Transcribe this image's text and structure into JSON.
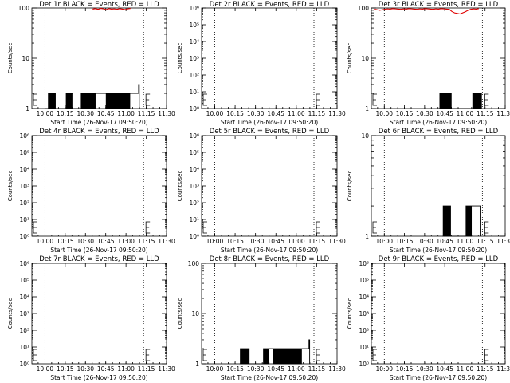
{
  "chart_data": [
    {
      "type": "line",
      "title": "Det 1r BLACK = Events, RED = LLD",
      "xlabel": "Start Time (26-Nov-17 09:50:20)",
      "ylabel": "Counts/sec",
      "yscale": "log",
      "ylim": [
        1,
        100
      ],
      "yticks": [
        1,
        10,
        100
      ],
      "ytick_labels": [
        "1",
        "10",
        "100"
      ],
      "xlim": [
        "09:50:20",
        "11:30:00"
      ],
      "xticks": [
        "10:00",
        "10:15",
        "10:30",
        "10:45",
        "11:00",
        "11:15",
        "11:30"
      ],
      "vlines": [
        "10:00",
        "11:13"
      ],
      "series": [
        {
          "color": "#000000",
          "x_minutes": [
            10,
            12,
            12.2,
            12.6,
            13,
            13.4,
            13.8,
            14.2,
            14.6,
            15,
            15.4,
            15.8,
            16.2,
            16.6,
            17,
            17.4,
            25,
            25.4,
            25.8,
            26.2,
            26.6,
            27,
            27.4,
            27.8,
            28.2,
            28.6,
            29,
            29.4,
            30,
            36,
            36.1,
            36.5,
            36.9,
            37.3,
            37.7,
            38.1,
            38.5,
            38.9,
            39.3,
            39.7,
            40.1,
            40.5,
            40.9,
            41.3,
            41.7,
            42.1,
            42.5,
            42.9,
            43.3,
            43.7,
            44.1,
            44.5,
            44.9,
            45.3,
            45.7,
            46.1,
            46.5,
            46.9,
            50,
            50.5,
            51,
            51.5,
            52,
            52.5,
            53,
            53.5,
            54,
            54.5,
            55,
            55.5,
            56,
            56.5,
            57,
            57.5,
            58,
            58.5,
            59,
            59.5,
            60,
            60.5,
            61,
            61.5,
            62,
            62.5,
            63,
            63.5,
            64,
            64.5,
            65,
            65.5,
            66,
            66.5,
            67,
            67.5,
            68,
            68.5,
            69,
            69.5,
            70,
            70.5,
            71,
            71.5,
            72,
            72.5,
            73,
            73.5,
            74,
            74.5,
            75,
            79,
            79.5,
            80
          ],
          "y": [
            1,
            1,
            2,
            1,
            2,
            1,
            2,
            1,
            2,
            1,
            2,
            1,
            2,
            1,
            2,
            1,
            1,
            2,
            1,
            2,
            1,
            2,
            1,
            2,
            1,
            2,
            1,
            2,
            1,
            1,
            1,
            2,
            1,
            2,
            1,
            2,
            1,
            2,
            1,
            2,
            1,
            2,
            1,
            2,
            1,
            2,
            1,
            2,
            1,
            2,
            1,
            2,
            1,
            2,
            1,
            2,
            1,
            2,
            2,
            2,
            2,
            2,
            2,
            2,
            2,
            2,
            2,
            2,
            1,
            2,
            1,
            2,
            1,
            2,
            1,
            2,
            1,
            2,
            1,
            2,
            1,
            2,
            1,
            2,
            1,
            2,
            1,
            2,
            1,
            2,
            1,
            2,
            1,
            2,
            1,
            2,
            1,
            2,
            1,
            2,
            1,
            2,
            1,
            2,
            2,
            2,
            2,
            2,
            2,
            3,
            1,
            1
          ]
        },
        {
          "color": "#e00000",
          "x_minutes": [
            45,
            47,
            49,
            51,
            53,
            55,
            57,
            59,
            61,
            63,
            65,
            67,
            69,
            71,
            73
          ],
          "y": [
            95,
            97,
            94,
            98,
            96,
            93,
            97,
            95,
            96,
            94,
            97,
            95,
            93,
            96,
            98
          ]
        }
      ]
    },
    {
      "type": "line",
      "title": "Det 2r BLACK = Events, RED = LLD",
      "xlabel": "Start Time (26-Nov-17 09:50:20)",
      "ylabel": "Counts/sec",
      "yscale": "log",
      "ylim": [
        1,
        1000000
      ],
      "ytick_labels": [
        "10⁰",
        "10¹",
        "10²",
        "10³",
        "10⁴",
        "10⁵",
        "10⁶"
      ],
      "xticks": [
        "10:00",
        "10:15",
        "10:30",
        "10:45",
        "11:00",
        "11:15",
        "11:30"
      ],
      "vlines": [
        "10:00",
        "11:13"
      ],
      "series": []
    },
    {
      "type": "line",
      "title": "Det 3r BLACK = Events, RED = LLD",
      "xlabel": "Start Time (26-Nov-17 09:50:20)",
      "ylabel": "Counts/sec",
      "yscale": "log",
      "ylim": [
        1,
        100
      ],
      "ytick_labels": [
        "1",
        "10",
        "100"
      ],
      "xticks": [
        "10:00",
        "10:15",
        "10:30",
        "10:45",
        "11:00",
        "11:15",
        "11:30"
      ],
      "vlines": [
        "10:00",
        "11:13"
      ],
      "series": [
        {
          "color": "#000000",
          "x_minutes": [
            50,
            51,
            51.5,
            52,
            52.5,
            53,
            53.5,
            54,
            54.5,
            55,
            55.5,
            56,
            56.5,
            57,
            57.5,
            58,
            58.5,
            59,
            59.5,
            60,
            75,
            75.5,
            76,
            76.5,
            77,
            77.5,
            78,
            78.5,
            79,
            79.5,
            80,
            80.5,
            81,
            81.5,
            82
          ],
          "y": [
            1,
            2,
            1,
            2,
            1,
            2,
            1,
            2,
            1,
            2,
            1,
            2,
            1,
            2,
            1,
            2,
            1,
            2,
            1,
            1,
            1,
            2,
            1,
            2,
            1,
            2,
            1,
            2,
            1,
            2,
            1,
            2,
            1,
            2,
            1
          ]
        },
        {
          "color": "#e00000",
          "x_minutes": [
            2,
            4,
            6,
            8,
            10,
            12,
            14,
            16,
            18,
            20,
            22,
            24,
            26,
            28,
            30,
            32,
            34,
            36,
            38,
            40,
            42,
            44,
            46,
            48,
            50,
            52,
            54,
            56,
            58,
            60,
            62,
            64,
            66,
            68,
            70,
            72,
            74,
            76,
            78,
            80
          ],
          "y": [
            95,
            93,
            90,
            92,
            94,
            96,
            95,
            97,
            96,
            95,
            94,
            96,
            95,
            97,
            96,
            95,
            94,
            96,
            95,
            97,
            96,
            95,
            94,
            96,
            95,
            97,
            96,
            95,
            94,
            85,
            80,
            78,
            76,
            80,
            84,
            90,
            94,
            96,
            95,
            97
          ]
        }
      ]
    },
    {
      "type": "line",
      "title": "Det 4r BLACK = Events, RED = LLD",
      "xlabel": "Start Time (26-Nov-17 09:50:20)",
      "ylabel": "Counts/sec",
      "yscale": "log",
      "ylim": [
        1,
        1000000
      ],
      "ytick_labels": [
        "10⁰",
        "10¹",
        "10²",
        "10³",
        "10⁴",
        "10⁵",
        "10⁶"
      ],
      "xticks": [
        "10:00",
        "10:15",
        "10:30",
        "10:45",
        "11:00",
        "11:15",
        "11:30"
      ],
      "vlines": [
        "10:00",
        "11:13"
      ],
      "series": []
    },
    {
      "type": "line",
      "title": "Det 5r BLACK = Events, RED = LLD",
      "xlabel": "Start Time (26-Nov-17 09:50:20)",
      "ylabel": "Counts/sec",
      "yscale": "log",
      "ylim": [
        1,
        1000000
      ],
      "ytick_labels": [
        "10⁰",
        "10¹",
        "10²",
        "10³",
        "10⁴",
        "10⁵",
        "10⁶"
      ],
      "xticks": [
        "10:00",
        "10:15",
        "10:30",
        "10:45",
        "11:00",
        "11:15",
        "11:30"
      ],
      "vlines": [
        "10:00",
        "11:13"
      ],
      "series": []
    },
    {
      "type": "line",
      "title": "Det 6r BLACK = Events, RED = LLD",
      "xlabel": "Start Time (26-Nov-17 09:50:20)",
      "ylabel": "Counts/sec",
      "yscale": "log",
      "ylim": [
        1,
        10
      ],
      "ytick_labels": [
        "1",
        "10"
      ],
      "xticks": [
        "10:00",
        "10:15",
        "10:30",
        "10:45",
        "11:00",
        "11:15",
        "11:30"
      ],
      "vlines": [
        "10:00",
        "11:13"
      ],
      "series": [
        {
          "color": "#000000",
          "x_minutes": [
            53,
            53.5,
            54,
            54.5,
            55,
            55.5,
            56,
            56.5,
            57,
            57.5,
            58,
            58.5,
            59,
            70,
            70.5,
            71,
            71.5,
            72,
            72.5,
            73,
            73.5,
            74,
            74.5,
            75,
            76,
            77,
            78,
            79,
            80,
            80.5,
            81
          ],
          "y": [
            1,
            2,
            1,
            2,
            1,
            2,
            1,
            2,
            1,
            2,
            1,
            2,
            1,
            1,
            2,
            1,
            2,
            1,
            2,
            1,
            2,
            1,
            2,
            2,
            2,
            2,
            2,
            2,
            2,
            2,
            1
          ]
        }
      ]
    },
    {
      "type": "line",
      "title": "Det 7r BLACK = Events, RED = LLD",
      "xlabel": "Start Time (26-Nov-17 09:50:20)",
      "ylabel": "Counts/sec",
      "yscale": "log",
      "ylim": [
        1,
        1000000
      ],
      "ytick_labels": [
        "10⁰",
        "10¹",
        "10²",
        "10³",
        "10⁴",
        "10⁵",
        "10⁶"
      ],
      "xticks": [
        "10:00",
        "10:15",
        "10:30",
        "10:45",
        "11:00",
        "11:15",
        "11:30"
      ],
      "vlines": [
        "10:00",
        "11:13"
      ],
      "series": []
    },
    {
      "type": "line",
      "title": "Det 8r BLACK = Events, RED = LLD",
      "xlabel": "Start Time (26-Nov-17 09:50:20)",
      "ylabel": "Counts/sec",
      "yscale": "log",
      "ylim": [
        1,
        100
      ],
      "ytick_labels": [
        "1",
        "10",
        "100"
      ],
      "xticks": [
        "10:00",
        "10:15",
        "10:30",
        "10:45",
        "11:00",
        "11:15",
        "11:30"
      ],
      "vlines": [
        "10:00",
        "11:13"
      ],
      "series": [
        {
          "color": "#000000",
          "x_minutes": [
            28,
            28.5,
            29,
            29.5,
            30,
            30.5,
            31,
            31.5,
            32,
            32.5,
            33,
            33.5,
            34,
            34.5,
            35,
            45,
            45.5,
            46,
            46.5,
            47,
            47.5,
            48,
            48.5,
            49,
            49.5,
            50,
            50.5,
            51,
            51.5,
            52,
            52.5,
            53,
            53.5,
            54,
            54.5,
            55,
            55.5,
            56,
            56.5,
            57,
            57.5,
            58,
            58.5,
            59,
            59.5,
            60,
            60.5,
            61,
            61.5,
            62,
            62.5,
            63,
            63.5,
            64,
            64.5,
            65,
            65.5,
            66,
            66.5,
            67,
            67.5,
            68,
            68.5,
            69,
            69.5,
            70,
            70.5,
            71,
            71.5,
            72,
            72.5,
            73,
            73.5,
            74,
            75,
            76,
            77,
            78,
            79,
            79.5,
            80
          ],
          "y": [
            1,
            2,
            1,
            2,
            1,
            2,
            1,
            2,
            1,
            2,
            1,
            2,
            1,
            2,
            1,
            1,
            2,
            1,
            2,
            1,
            2,
            1,
            2,
            1,
            2,
            2,
            2,
            2,
            2,
            2,
            2,
            1,
            2,
            1,
            2,
            1,
            2,
            1,
            2,
            1,
            2,
            1,
            2,
            1,
            2,
            1,
            2,
            1,
            2,
            1,
            2,
            1,
            2,
            1,
            2,
            1,
            2,
            1,
            2,
            1,
            2,
            1,
            2,
            1,
            2,
            1,
            2,
            1,
            2,
            1,
            2,
            1,
            2,
            2,
            2,
            2,
            2,
            2,
            3,
            1,
            1
          ]
        }
      ]
    },
    {
      "type": "line",
      "title": "Det 9r BLACK = Events, RED = LLD",
      "xlabel": "Start Time (26-Nov-17 09:50:20)",
      "ylabel": "Counts/sec",
      "yscale": "log",
      "ylim": [
        1,
        1000000
      ],
      "ytick_labels": [
        "10⁰",
        "10¹",
        "10²",
        "10³",
        "10⁴",
        "10⁵",
        "10⁶"
      ],
      "xticks": [
        "10:00",
        "10:15",
        "10:30",
        "10:45",
        "11:00",
        "11:15",
        "11:30"
      ],
      "vlines": [
        "10:00",
        "11:13"
      ],
      "series": []
    }
  ]
}
